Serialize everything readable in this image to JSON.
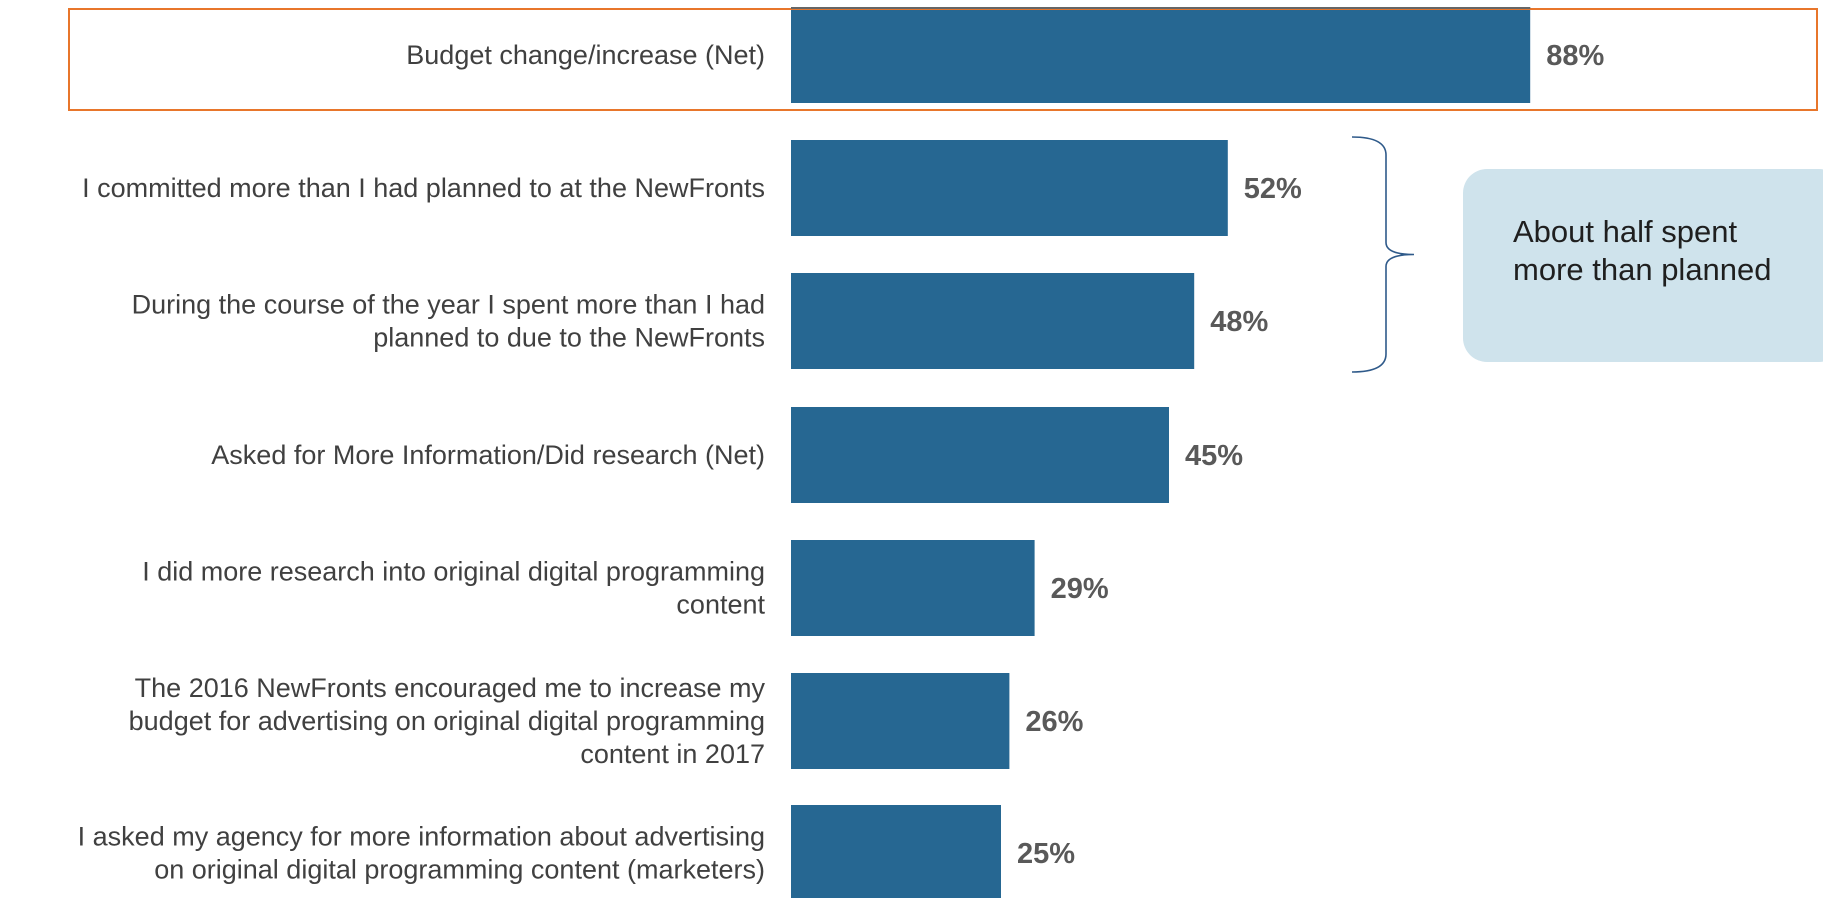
{
  "chart_data": {
    "type": "bar",
    "orientation": "horizontal",
    "categories": [
      "Budget change/increase (Net)",
      "I committed more than I had planned to at the NewFronts",
      "During the course of the year I spent more than I had planned to due to the NewFronts",
      "Asked for More Information/Did research (Net)",
      "I did more research into original digital programming content",
      "The 2016 NewFronts encouraged me to increase my budget for advertising on original digital programming content in 2017",
      "I asked my agency for more information about advertising on original digital programming content (marketers)"
    ],
    "label_lines": [
      [
        "Budget change/increase (Net)"
      ],
      [
        "I committed more than I had planned to at the NewFronts"
      ],
      [
        "During the course of the year I spent more than I had",
        "planned to due to the NewFronts"
      ],
      [
        "Asked for More Information/Did research (Net)"
      ],
      [
        "I did more research into original digital programming",
        "content"
      ],
      [
        "The 2016 NewFronts encouraged me to increase my",
        "budget for advertising on original digital programming",
        "content in 2017"
      ],
      [
        "I asked my agency for more information about advertising",
        "on original digital programming content (marketers)"
      ]
    ],
    "values": [
      88,
      52,
      48,
      45,
      29,
      26,
      25
    ],
    "value_labels": [
      "88%",
      "52%",
      "48%",
      "45%",
      "29%",
      "26%",
      "25%"
    ],
    "unit": "%",
    "xlim": [
      0,
      100
    ],
    "grid": false,
    "legend": "none",
    "highlighted_category_index": 0,
    "bracket_category_indices": [
      1,
      2
    ]
  },
  "callout": {
    "text": "About half spent\nmore than planned"
  },
  "colors": {
    "bar": "#266792",
    "highlight_border": "#e8762b",
    "bracket": "#2f5a8a",
    "callout_bg": "#cfe3ec",
    "category_text": "#404040",
    "value_text": "#595959"
  }
}
